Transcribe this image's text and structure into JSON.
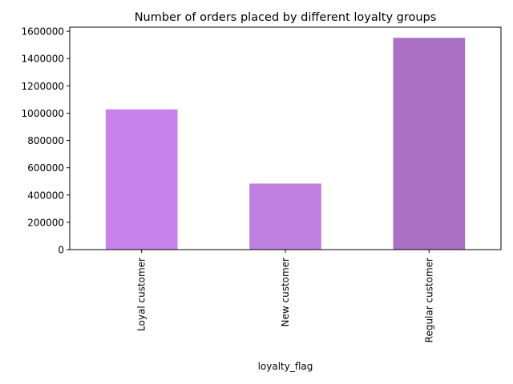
{
  "chart_data": {
    "type": "bar",
    "title": "Number of orders placed by different loyalty groups",
    "xlabel": "loyalty_flag",
    "ylabel": "",
    "categories": [
      "Loyal customer",
      "New customer",
      "Regular customer"
    ],
    "values": [
      1028000,
      484000,
      1552000
    ],
    "bar_colors": [
      "#c882eb",
      "#be7fde",
      "#a96fc3"
    ],
    "ylim": [
      0,
      1630000
    ],
    "yticks": [
      0,
      200000,
      400000,
      600000,
      800000,
      1000000,
      1200000,
      1400000,
      1600000
    ],
    "ytick_labels": [
      "0",
      "200000",
      "400000",
      "600000",
      "800000",
      "1000000",
      "1200000",
      "1400000",
      "1600000"
    ],
    "grid": false,
    "legend": "none"
  }
}
